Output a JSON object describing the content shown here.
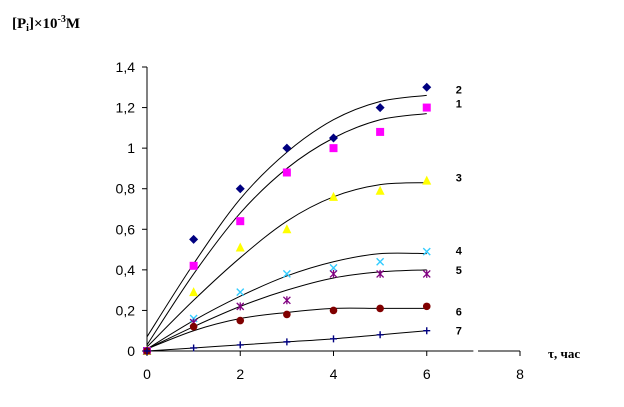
{
  "chart_data": {
    "type": "scatter",
    "ylabel": {
      "main": "[P",
      "sub": "i",
      "tail": "]×10",
      "sup": "-3",
      "unit": "M"
    },
    "xlabel": "τ, час",
    "xlim": [
      0,
      8
    ],
    "ylim": [
      0,
      1.4
    ],
    "xticks": [
      {
        "value": 0,
        "label": "0"
      },
      {
        "value": 2,
        "label": "2"
      },
      {
        "value": 4,
        "label": "4"
      },
      {
        "value": 6,
        "label": "6"
      },
      {
        "value": 8,
        "label": "8"
      }
    ],
    "yticks": [
      {
        "value": 0,
        "label": "0"
      },
      {
        "value": 0.2,
        "label": "0,2"
      },
      {
        "value": 0.4,
        "label": "0,4"
      },
      {
        "value": 0.6,
        "label": "0,6"
      },
      {
        "value": 0.8,
        "label": "0,8"
      },
      {
        "value": 1.0,
        "label": "1"
      },
      {
        "value": 1.2,
        "label": "1,2"
      },
      {
        "value": 1.4,
        "label": "1,4"
      }
    ],
    "grid": false,
    "series": [
      {
        "name": "2",
        "marker": "diamond",
        "color": "#000080",
        "points": [
          [
            0,
            0
          ],
          [
            1,
            0.55
          ],
          [
            2,
            0.8
          ],
          [
            3,
            1.0
          ],
          [
            4,
            1.05
          ],
          [
            5,
            1.2
          ],
          [
            6,
            1.3
          ]
        ],
        "curve": [
          [
            0,
            0.07
          ],
          [
            1,
            0.43
          ],
          [
            2,
            0.75
          ],
          [
            3,
            0.98
          ],
          [
            4,
            1.14
          ],
          [
            5,
            1.23
          ],
          [
            6,
            1.26
          ]
        ]
      },
      {
        "name": "1",
        "marker": "square",
        "color": "#FF00FF",
        "points": [
          [
            0,
            0
          ],
          [
            1,
            0.42
          ],
          [
            2,
            0.64
          ],
          [
            3,
            0.88
          ],
          [
            4,
            1.0
          ],
          [
            5,
            1.08
          ],
          [
            6,
            1.2
          ]
        ],
        "curve": [
          [
            0,
            0.03
          ],
          [
            1,
            0.38
          ],
          [
            2,
            0.68
          ],
          [
            3,
            0.9
          ],
          [
            4,
            1.05
          ],
          [
            5,
            1.14
          ],
          [
            6,
            1.17
          ]
        ]
      },
      {
        "name": "3",
        "marker": "triangle",
        "color": "#FFFF00",
        "points": [
          [
            0,
            0
          ],
          [
            1,
            0.29
          ],
          [
            2,
            0.51
          ],
          [
            3,
            0.6
          ],
          [
            4,
            0.76
          ],
          [
            5,
            0.79
          ],
          [
            6,
            0.84
          ]
        ],
        "curve": [
          [
            0,
            0.02
          ],
          [
            1,
            0.25
          ],
          [
            2,
            0.46
          ],
          [
            3,
            0.64
          ],
          [
            4,
            0.76
          ],
          [
            5,
            0.82
          ],
          [
            6,
            0.83
          ]
        ]
      },
      {
        "name": "4",
        "marker": "x",
        "color": "#33CCFF",
        "points": [
          [
            0,
            0
          ],
          [
            1,
            0.16
          ],
          [
            2,
            0.29
          ],
          [
            3,
            0.38
          ],
          [
            4,
            0.41
          ],
          [
            5,
            0.44
          ],
          [
            6,
            0.49
          ]
        ],
        "curve": [
          [
            0,
            0.01
          ],
          [
            1,
            0.15
          ],
          [
            2,
            0.27
          ],
          [
            3,
            0.37
          ],
          [
            4,
            0.44
          ],
          [
            5,
            0.48
          ],
          [
            6,
            0.48
          ]
        ]
      },
      {
        "name": "5",
        "marker": "star",
        "color": "#800080",
        "points": [
          [
            0,
            0
          ],
          [
            1,
            0.14
          ],
          [
            2,
            0.22
          ],
          [
            3,
            0.25
          ],
          [
            4,
            0.38
          ],
          [
            5,
            0.38
          ],
          [
            6,
            0.38
          ]
        ],
        "curve": [
          [
            0,
            0.01
          ],
          [
            1,
            0.12
          ],
          [
            2,
            0.22
          ],
          [
            3,
            0.3
          ],
          [
            4,
            0.36
          ],
          [
            5,
            0.39
          ],
          [
            6,
            0.4
          ]
        ]
      },
      {
        "name": "6",
        "marker": "circle",
        "color": "#800000",
        "points": [
          [
            0,
            0
          ],
          [
            1,
            0.12
          ],
          [
            2,
            0.15
          ],
          [
            3,
            0.18
          ],
          [
            4,
            0.2
          ],
          [
            5,
            0.21
          ],
          [
            6,
            0.22
          ]
        ],
        "curve": [
          [
            0,
            0.01
          ],
          [
            1,
            0.1
          ],
          [
            2,
            0.16
          ],
          [
            3,
            0.19
          ],
          [
            4,
            0.21
          ],
          [
            5,
            0.21
          ],
          [
            6,
            0.21
          ]
        ]
      },
      {
        "name": "7",
        "marker": "plus",
        "color": "#000080",
        "points": [
          [
            0,
            0
          ],
          [
            1,
            0.015
          ],
          [
            2,
            0.03
          ],
          [
            3,
            0.045
          ],
          [
            4,
            0.06
          ],
          [
            5,
            0.08
          ],
          [
            6,
            0.1
          ]
        ],
        "curve": [
          [
            0,
            0
          ],
          [
            1,
            0.015
          ],
          [
            2,
            0.03
          ],
          [
            3,
            0.045
          ],
          [
            4,
            0.06
          ],
          [
            5,
            0.08
          ],
          [
            6,
            0.1
          ]
        ]
      }
    ]
  }
}
